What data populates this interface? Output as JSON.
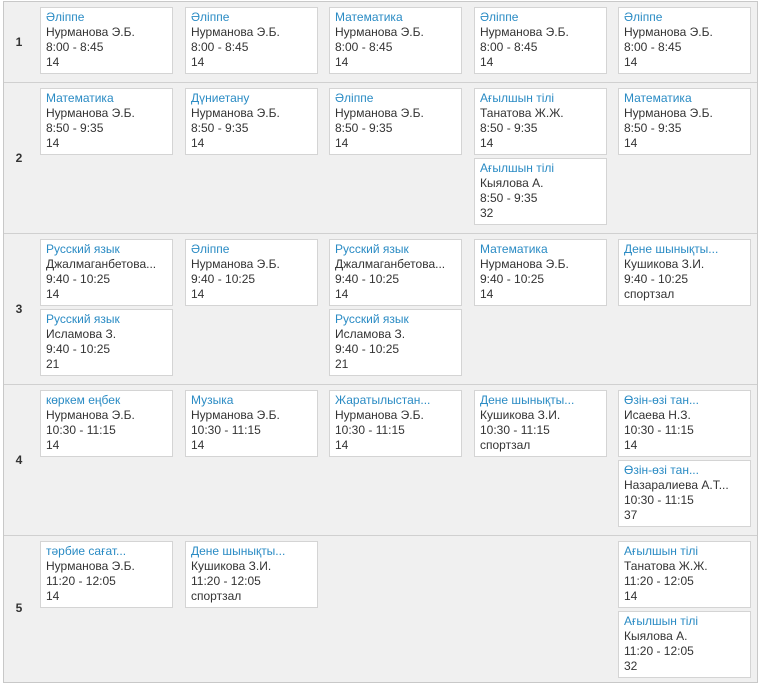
{
  "periods": [
    {
      "number": "1",
      "lessons": [
        {
          "day": 0,
          "slot": 0,
          "subject": "Әліппе",
          "teacher": "Нурманова Э.Б.",
          "time": "8:00 - 8:45",
          "room": "14"
        },
        {
          "day": 1,
          "slot": 0,
          "subject": "Әліппе",
          "teacher": "Нурманова Э.Б.",
          "time": "8:00 - 8:45",
          "room": "14"
        },
        {
          "day": 2,
          "slot": 0,
          "subject": "Математика",
          "teacher": "Нурманова Э.Б.",
          "time": "8:00 - 8:45",
          "room": "14"
        },
        {
          "day": 3,
          "slot": 0,
          "subject": "Әліппе",
          "teacher": "Нурманова Э.Б.",
          "time": "8:00 - 8:45",
          "room": "14"
        },
        {
          "day": 4,
          "slot": 0,
          "subject": "Әліппе",
          "teacher": "Нурманова Э.Б.",
          "time": "8:00 - 8:45",
          "room": "14"
        }
      ]
    },
    {
      "number": "2",
      "lessons": [
        {
          "day": 0,
          "slot": 0,
          "subject": "Математика",
          "teacher": "Нурманова Э.Б.",
          "time": "8:50 - 9:35",
          "room": "14"
        },
        {
          "day": 1,
          "slot": 0,
          "subject": "Дүниетану",
          "teacher": "Нурманова Э.Б.",
          "time": "8:50 - 9:35",
          "room": "14"
        },
        {
          "day": 2,
          "slot": 0,
          "subject": "Әліппе",
          "teacher": "Нурманова Э.Б.",
          "time": "8:50 - 9:35",
          "room": "14"
        },
        {
          "day": 3,
          "slot": 0,
          "subject": "Ағылшын тілі",
          "teacher": "Танатова Ж.Ж.",
          "time": "8:50 - 9:35",
          "room": "14"
        },
        {
          "day": 3,
          "slot": 1,
          "subject": "Ағылшын тілі",
          "teacher": "Кыялова А.",
          "time": "8:50 - 9:35",
          "room": "32"
        },
        {
          "day": 4,
          "slot": 0,
          "subject": "Математика",
          "teacher": "Нурманова Э.Б.",
          "time": "8:50 - 9:35",
          "room": "14"
        }
      ]
    },
    {
      "number": "3",
      "lessons": [
        {
          "day": 0,
          "slot": 0,
          "subject": "Русский язык",
          "teacher": "Джалмаганбетова...",
          "time": "9:40 - 10:25",
          "room": "14"
        },
        {
          "day": 0,
          "slot": 1,
          "subject": "Русский язык",
          "teacher": "Исламова З.",
          "time": "9:40 - 10:25",
          "room": "21"
        },
        {
          "day": 1,
          "slot": 0,
          "subject": "Әліппе",
          "teacher": "Нурманова Э.Б.",
          "time": "9:40 - 10:25",
          "room": "14"
        },
        {
          "day": 2,
          "slot": 0,
          "subject": "Русский язык",
          "teacher": "Джалмаганбетова...",
          "time": "9:40 - 10:25",
          "room": "14"
        },
        {
          "day": 2,
          "slot": 1,
          "subject": "Русский язык",
          "teacher": "Исламова З.",
          "time": "9:40 - 10:25",
          "room": "21"
        },
        {
          "day": 3,
          "slot": 0,
          "subject": "Математика",
          "teacher": "Нурманова Э.Б.",
          "time": "9:40 - 10:25",
          "room": "14"
        },
        {
          "day": 4,
          "slot": 0,
          "subject": "Дене шынықты...",
          "teacher": "Кушикова З.И.",
          "time": "9:40 - 10:25",
          "room": "спортзал"
        }
      ]
    },
    {
      "number": "4",
      "lessons": [
        {
          "day": 0,
          "slot": 0,
          "subject": "көркем еңбек",
          "teacher": "Нурманова Э.Б.",
          "time": "10:30 - 11:15",
          "room": "14"
        },
        {
          "day": 1,
          "slot": 0,
          "subject": "Музыка",
          "teacher": "Нурманова Э.Б.",
          "time": "10:30 - 11:15",
          "room": "14"
        },
        {
          "day": 2,
          "slot": 0,
          "subject": "Жаратылыстан...",
          "teacher": "Нурманова Э.Б.",
          "time": "10:30 - 11:15",
          "room": "14"
        },
        {
          "day": 3,
          "slot": 0,
          "subject": "Дене шынықты...",
          "teacher": "Кушикова З.И.",
          "time": "10:30 - 11:15",
          "room": "спортзал"
        },
        {
          "day": 4,
          "slot": 0,
          "subject": "Өзін-өзі тан...",
          "teacher": "Исаева Н.З.",
          "time": "10:30 - 11:15",
          "room": "14"
        },
        {
          "day": 4,
          "slot": 1,
          "subject": "Өзін-өзі тан...",
          "teacher": "Назаралиева А.Т...",
          "time": "10:30 - 11:15",
          "room": "37"
        }
      ]
    },
    {
      "number": "5",
      "lessons": [
        {
          "day": 0,
          "slot": 0,
          "subject": "тәрбие сағат...",
          "teacher": "Нурманова Э.Б.",
          "time": "11:20 - 12:05",
          "room": "14"
        },
        {
          "day": 1,
          "slot": 0,
          "subject": "Дене шынықты...",
          "teacher": "Кушикова З.И.",
          "time": "11:20 - 12:05",
          "room": "спортзал"
        },
        {
          "day": 4,
          "slot": 0,
          "subject": "Ағылшын тілі",
          "teacher": "Танатова Ж.Ж.",
          "time": "11:20 - 12:05",
          "room": "14"
        },
        {
          "day": 4,
          "slot": 1,
          "subject": "Ағылшын тілі",
          "teacher": "Кыялова А.",
          "time": "11:20 - 12:05",
          "room": "32"
        }
      ]
    }
  ],
  "colors": {
    "subject_link": "#2a8bc4",
    "text": "#333333",
    "background": "#f0f0f0",
    "card": "#ffffff"
  }
}
